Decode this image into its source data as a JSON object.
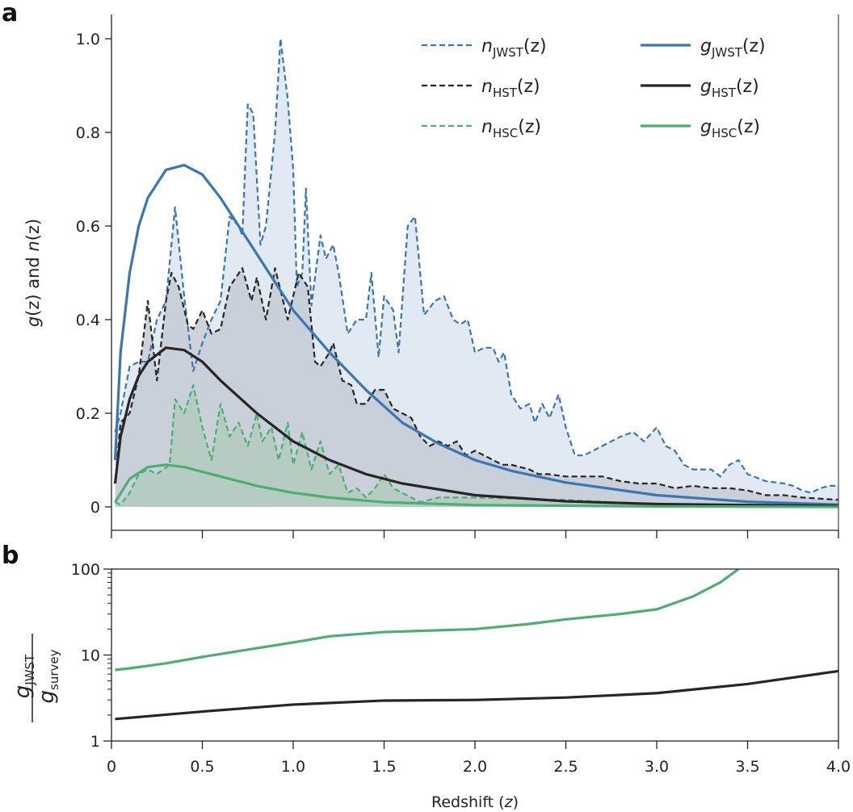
{
  "chart_data": [
    {
      "panel_label": "a",
      "type": "line",
      "xlim": [
        0,
        4.0
      ],
      "ylim": [
        0,
        1.0
      ],
      "yticks": [
        "0",
        "0.2",
        "0.4",
        "0.6",
        "0.8",
        "1.0"
      ],
      "xticks_shown_labels": false,
      "ylabel_parts": [
        "g",
        "(z) and ",
        "n",
        "(z)"
      ],
      "legend_placement": "top-right",
      "colors": {
        "JWST": "#3a76b4",
        "HST": "#262626",
        "HSC": "#4caf72"
      },
      "fill_colors": {
        "JWST": "#dce6f1",
        "HST": "#c6cbd3",
        "HSC": "#b3cbbd"
      },
      "series": [
        {
          "name": "n_JWST(z)",
          "sym": "n",
          "sub": "JWST",
          "arg": "(z)",
          "style": "dashed",
          "survey": "JWST",
          "filled": true,
          "x": [
            0.02,
            0.05,
            0.1,
            0.15,
            0.2,
            0.25,
            0.3,
            0.35,
            0.4,
            0.45,
            0.5,
            0.55,
            0.6,
            0.65,
            0.7,
            0.72,
            0.75,
            0.78,
            0.82,
            0.85,
            0.9,
            0.93,
            0.97,
            1.0,
            1.02,
            1.05,
            1.07,
            1.1,
            1.15,
            1.18,
            1.22,
            1.25,
            1.3,
            1.35,
            1.4,
            1.43,
            1.47,
            1.5,
            1.55,
            1.58,
            1.63,
            1.67,
            1.72,
            1.78,
            1.83,
            1.88,
            1.92,
            1.96,
            2.0,
            2.05,
            2.1,
            2.13,
            2.16,
            2.2,
            2.25,
            2.3,
            2.33,
            2.37,
            2.41,
            2.46,
            2.5,
            2.55,
            2.6,
            2.65,
            2.7,
            2.75,
            2.8,
            2.87,
            2.93,
            3.0,
            3.05,
            3.1,
            3.15,
            3.2,
            3.3,
            3.35,
            3.4,
            3.45,
            3.5,
            3.6,
            3.7,
            3.75,
            3.8,
            3.85,
            3.9,
            3.95,
            4.0
          ],
          "y": [
            0.16,
            0.2,
            0.3,
            0.31,
            0.31,
            0.4,
            0.44,
            0.64,
            0.45,
            0.29,
            0.35,
            0.4,
            0.44,
            0.62,
            0.6,
            0.58,
            0.86,
            0.84,
            0.56,
            0.6,
            0.8,
            1.0,
            0.87,
            0.72,
            0.47,
            0.5,
            0.68,
            0.43,
            0.58,
            0.53,
            0.56,
            0.5,
            0.37,
            0.4,
            0.4,
            0.5,
            0.32,
            0.45,
            0.42,
            0.33,
            0.6,
            0.62,
            0.41,
            0.44,
            0.45,
            0.4,
            0.39,
            0.4,
            0.33,
            0.34,
            0.34,
            0.31,
            0.33,
            0.24,
            0.21,
            0.22,
            0.18,
            0.22,
            0.19,
            0.24,
            0.17,
            0.11,
            0.11,
            0.12,
            0.13,
            0.14,
            0.15,
            0.16,
            0.14,
            0.17,
            0.13,
            0.12,
            0.09,
            0.08,
            0.08,
            0.065,
            0.09,
            0.1,
            0.07,
            0.055,
            0.05,
            0.045,
            0.035,
            0.03,
            0.04,
            0.045,
            0.045
          ]
        },
        {
          "name": "n_HST(z)",
          "sym": "n",
          "sub": "HST",
          "arg": "(z)",
          "style": "dashed",
          "survey": "HST",
          "filled": true,
          "x": [
            0.02,
            0.05,
            0.1,
            0.15,
            0.2,
            0.25,
            0.3,
            0.33,
            0.37,
            0.42,
            0.45,
            0.5,
            0.55,
            0.6,
            0.65,
            0.72,
            0.77,
            0.8,
            0.85,
            0.9,
            0.97,
            1.03,
            1.08,
            1.12,
            1.15,
            1.2,
            1.22,
            1.27,
            1.32,
            1.35,
            1.4,
            1.45,
            1.5,
            1.55,
            1.6,
            1.65,
            1.7,
            1.75,
            1.8,
            1.85,
            1.9,
            1.95,
            2.0,
            2.1,
            2.15,
            2.2,
            2.3,
            2.35,
            2.4,
            2.5,
            2.6,
            2.7,
            2.8,
            2.9,
            3.0,
            3.1,
            3.2,
            3.3,
            3.4,
            3.5,
            3.6,
            3.7,
            3.8,
            4.0
          ],
          "y": [
            0.05,
            0.18,
            0.2,
            0.28,
            0.44,
            0.27,
            0.44,
            0.5,
            0.47,
            0.39,
            0.38,
            0.42,
            0.37,
            0.38,
            0.47,
            0.51,
            0.44,
            0.49,
            0.4,
            0.51,
            0.4,
            0.5,
            0.47,
            0.31,
            0.3,
            0.33,
            0.35,
            0.27,
            0.26,
            0.22,
            0.22,
            0.25,
            0.25,
            0.21,
            0.2,
            0.19,
            0.15,
            0.13,
            0.14,
            0.13,
            0.14,
            0.11,
            0.12,
            0.1,
            0.09,
            0.09,
            0.08,
            0.07,
            0.07,
            0.065,
            0.065,
            0.065,
            0.055,
            0.05,
            0.05,
            0.04,
            0.045,
            0.04,
            0.04,
            0.035,
            0.025,
            0.025,
            0.02,
            0.015
          ]
        },
        {
          "name": "n_HSC(z)",
          "sym": "n",
          "sub": "HSC",
          "arg": "(z)",
          "style": "dashed",
          "survey": "HSC",
          "filled": true,
          "x": [
            0.02,
            0.05,
            0.1,
            0.15,
            0.2,
            0.25,
            0.32,
            0.35,
            0.4,
            0.45,
            0.5,
            0.55,
            0.6,
            0.65,
            0.7,
            0.75,
            0.8,
            0.83,
            0.88,
            0.92,
            0.97,
            1.0,
            1.05,
            1.1,
            1.15,
            1.2,
            1.25,
            1.3,
            1.35,
            1.4,
            1.45,
            1.5,
            1.55,
            1.6,
            1.65,
            1.7,
            1.8,
            2.0,
            2.5,
            3.0,
            4.0
          ],
          "y": [
            0.01,
            0.005,
            0.03,
            0.07,
            0.08,
            0.07,
            0.09,
            0.23,
            0.2,
            0.26,
            0.17,
            0.1,
            0.22,
            0.15,
            0.18,
            0.13,
            0.2,
            0.14,
            0.17,
            0.1,
            0.18,
            0.09,
            0.16,
            0.08,
            0.14,
            0.07,
            0.09,
            0.03,
            0.04,
            0.02,
            0.04,
            0.07,
            0.04,
            0.03,
            0.02,
            0.01,
            0.02,
            0.02,
            0.015,
            0.005,
            0.005
          ]
        },
        {
          "name": "g_JWST(z)",
          "sym": "g",
          "sub": "JWST",
          "arg": "(z)",
          "style": "solid",
          "survey": "JWST",
          "filled": false,
          "x": [
            0.02,
            0.05,
            0.1,
            0.15,
            0.2,
            0.3,
            0.4,
            0.5,
            0.6,
            0.7,
            0.8,
            0.9,
            1.0,
            1.2,
            1.4,
            1.6,
            1.8,
            2.0,
            2.2,
            2.5,
            3.0,
            3.5,
            4.0
          ],
          "y": [
            0.1,
            0.33,
            0.5,
            0.6,
            0.66,
            0.72,
            0.73,
            0.71,
            0.66,
            0.6,
            0.54,
            0.48,
            0.42,
            0.33,
            0.25,
            0.18,
            0.135,
            0.1,
            0.077,
            0.052,
            0.025,
            0.011,
            0.005
          ]
        },
        {
          "name": "g_HST(z)",
          "sym": "g",
          "sub": "HST",
          "arg": "(z)",
          "style": "solid",
          "survey": "HST",
          "filled": false,
          "x": [
            0.02,
            0.05,
            0.1,
            0.15,
            0.2,
            0.3,
            0.4,
            0.5,
            0.6,
            0.8,
            1.0,
            1.2,
            1.4,
            1.6,
            2.0,
            2.5,
            3.0,
            4.0
          ],
          "y": [
            0.05,
            0.15,
            0.23,
            0.28,
            0.31,
            0.34,
            0.335,
            0.31,
            0.27,
            0.2,
            0.14,
            0.1,
            0.07,
            0.05,
            0.025,
            0.012,
            0.006,
            0.002
          ]
        },
        {
          "name": "g_HSC(z)",
          "sym": "g",
          "sub": "HSC",
          "arg": "(z)",
          "style": "solid",
          "survey": "HSC",
          "filled": false,
          "x": [
            0.02,
            0.1,
            0.2,
            0.3,
            0.4,
            0.6,
            0.8,
            1.0,
            1.2,
            1.5,
            2.0,
            3.0,
            4.0
          ],
          "y": [
            0.01,
            0.06,
            0.085,
            0.09,
            0.085,
            0.065,
            0.045,
            0.03,
            0.02,
            0.01,
            0.004,
            0.001,
            0.0
          ]
        }
      ]
    },
    {
      "panel_label": "b",
      "type": "line",
      "xlim": [
        0,
        4.0
      ],
      "ylim": [
        1,
        100
      ],
      "yscale": "log",
      "xticks": [
        "0",
        "0.5",
        "1.0",
        "1.5",
        "2.0",
        "2.5",
        "3.0",
        "3.5",
        "4.0"
      ],
      "yticks": [
        "1",
        "10",
        "100"
      ],
      "xlabel_parts": [
        "Redshift (",
        "z",
        ")"
      ],
      "ylabel": {
        "num": "g",
        "num_sub": "JWST",
        "den": "g",
        "den_sub": "survey"
      },
      "series": [
        {
          "survey": "HSC",
          "x": [
            0.02,
            0.1,
            0.3,
            0.5,
            0.8,
            1.0,
            1.2,
            1.5,
            2.0,
            2.3,
            2.5,
            2.8,
            3.0,
            3.2,
            3.35,
            3.45
          ],
          "y": [
            6.7,
            7,
            8,
            9.5,
            12,
            14,
            16.5,
            18.5,
            20,
            23,
            26,
            30,
            34,
            48,
            70,
            100
          ]
        },
        {
          "survey": "HST",
          "x": [
            0.02,
            0.5,
            1.0,
            1.5,
            2.0,
            2.5,
            3.0,
            3.5,
            4.0
          ],
          "y": [
            1.8,
            2.2,
            2.65,
            2.95,
            3.0,
            3.2,
            3.6,
            4.6,
            6.5
          ]
        }
      ]
    }
  ]
}
